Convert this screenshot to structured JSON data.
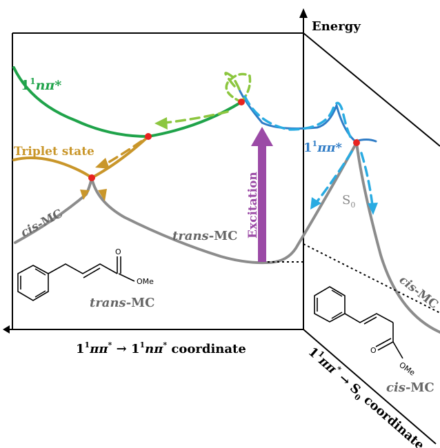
{
  "axes": {
    "energy": "Energy",
    "coord_left_a": "1",
    "coord_left_a_sup": "1",
    "coord_left_b": "ππ",
    "coord_left_b_sup": "*",
    "coord_left_arrow": " → ",
    "coord_left_c": "1",
    "coord_left_c_sup": "1",
    "coord_left_d": "nπ",
    "coord_left_d_sup": "*",
    "coord_left_tail": " coordinate",
    "coord_right_a": "1",
    "coord_right_a_sup": "1",
    "coord_right_b": "ππ",
    "coord_right_b_sup": "*",
    "coord_right_arrow": " → S",
    "coord_right_sub": "0",
    "coord_right_tail": " coordinate"
  },
  "states": {
    "npi_prefix": "1",
    "npi_sup": "1",
    "npi_body": "nπ*",
    "pipi_prefix": "1",
    "pipi_sup": "1",
    "pipi_body": "ππ*",
    "triplet": "Triplet state",
    "s0": "S",
    "s0_sub": "0",
    "excitation": "Excitation"
  },
  "molecules": {
    "cis_curve_left_italic": "cis",
    "cis_curve_left_rest": "-MC",
    "trans_curve_italic": "trans",
    "trans_curve_rest": "-MC",
    "trans_struct_italic": "trans",
    "trans_struct_rest": "-MC",
    "trans_ome": "OMe",
    "cis_curve_right_italic": "cis",
    "cis_curve_right_rest": "-MC",
    "cis_struct_italic": "cis",
    "cis_struct_rest": "-MC",
    "cis_ome": "OMe"
  },
  "colors": {
    "green": "#1fa34a",
    "light_green": "#8cc63f",
    "gold": "#c9962a",
    "gray": "#8c8c8c",
    "blue": "#2f7cc6",
    "light_blue": "#29abe2",
    "purple": "#9b4aa6",
    "red": "#e8231f"
  }
}
